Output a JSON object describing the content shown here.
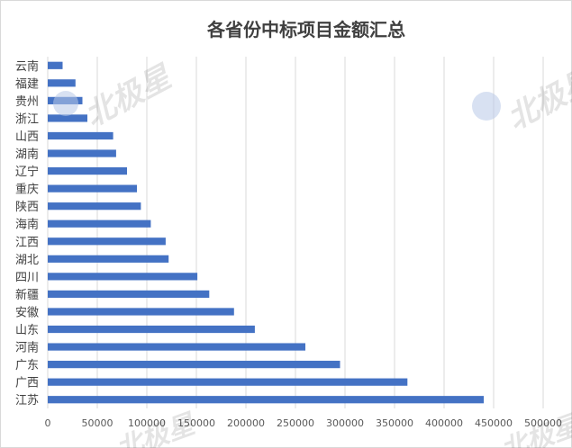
{
  "chart_data": {
    "type": "bar",
    "orientation": "horizontal",
    "title": "各省份中标项目金额汇总",
    "categories": [
      "云南",
      "福建",
      "贵州",
      "浙江",
      "山西",
      "湖南",
      "辽宁",
      "重庆",
      "陕西",
      "海南",
      "江西",
      "湖北",
      "四川",
      "新疆",
      "安徽",
      "山东",
      "河南",
      "广东",
      "广西",
      "江苏"
    ],
    "values": [
      15000,
      28000,
      35000,
      40000,
      66000,
      69000,
      80000,
      90000,
      94000,
      104000,
      119000,
      122000,
      151000,
      163000,
      188000,
      209000,
      260000,
      295000,
      363000,
      440000
    ],
    "xlim": [
      0,
      500000
    ],
    "xticks": [
      "0",
      "50000",
      "100000",
      "150000",
      "200000",
      "250000",
      "300000",
      "350000",
      "400000",
      "450000",
      "500000"
    ],
    "grid": "vertical",
    "legend": "none",
    "bar_color": "#4472c4"
  },
  "watermark": {
    "text": "北极星",
    "color": "#000000"
  }
}
